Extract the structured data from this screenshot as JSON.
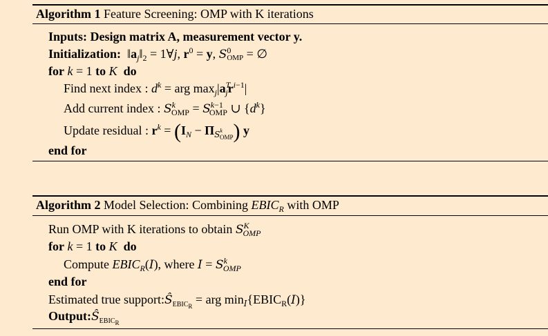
{
  "algorithm1": {
    "label": "Algorithm 1",
    "caption": "Feature Screening: OMP with K iterations",
    "inputs_label": "Inputs:",
    "inputs_text": "Design matrix A, measurement vector y.",
    "init_label": "Initialization:",
    "init_formula": "‖aj‖2 = 1∀j, r0 = y, S0OMP = ∅",
    "for_line": "for k = 1 to K do",
    "find_text": "Find next index :",
    "find_formula": "dk = arg maxj |ajT ri−1|",
    "add_text": "Add current index :",
    "add_formula": "SkOMP = Sk−1OMP ∪ {dk}",
    "update_text": "Update residual :",
    "update_formula": "rk = (IN − ΠSkOMP) y",
    "end_for": "end for"
  },
  "algorithm2": {
    "label": "Algorithm 2",
    "caption": "Model Selection: Combining EBICR with OMP",
    "run_text": "Run OMP with K iterations to obtain",
    "run_formula": "SKOMP",
    "for_line": "for k = 1 to K do",
    "compute_text": "Compute",
    "compute_formula": "EBICR(I), where I = SkOMP",
    "end_for": "end for",
    "estimated_text": "Estimated true support:",
    "estimated_formula": "ŜEBICR = arg minI{EBICR(I)}",
    "output_label": "Output:",
    "output_formula": "ŜEBICR"
  }
}
